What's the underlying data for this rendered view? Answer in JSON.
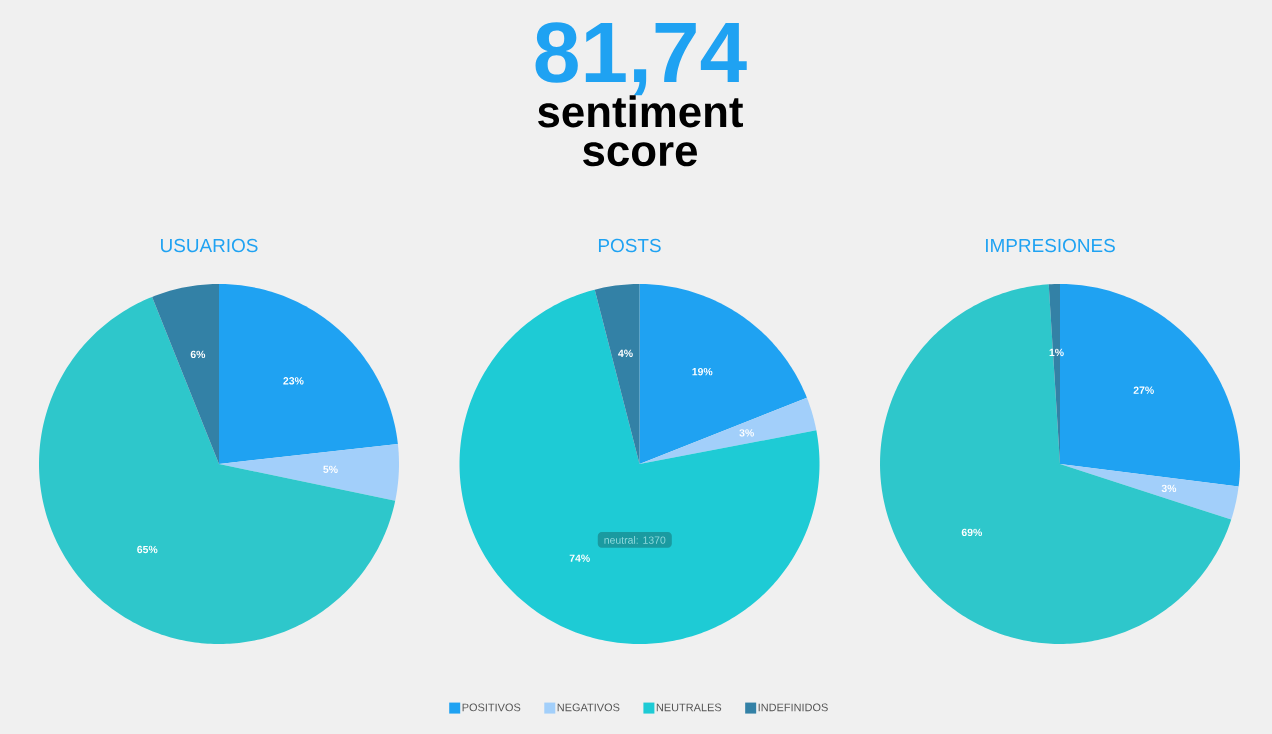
{
  "chart_data": [
    {
      "type": "other",
      "title": "81,74",
      "subtitle": "sentiment score"
    },
    {
      "type": "pie",
      "title": "USUARIOS",
      "categories": [
        null,
        null,
        null,
        null
      ],
      "values": [
        23,
        5,
        65,
        6
      ],
      "colors": [
        "#1fa2f2",
        "#a2cffa",
        "#2ec7cb",
        "#3381a6"
      ],
      "value_labels": [
        "23%",
        "5%",
        "65%",
        "6%"
      ]
    },
    {
      "type": "pie",
      "title": "POSTS",
      "categories": [
        "POSITIVOS",
        "NEGATIVOS",
        "NEUTRALES",
        "INDEFINIDOS"
      ],
      "values": [
        19,
        3,
        74,
        4
      ],
      "colors": [
        "#1fa2f2",
        "#a2cffa",
        "#1ecbd5",
        "#3381a6"
      ],
      "value_labels": [
        "19%",
        "3%",
        "74%",
        "4%"
      ],
      "legend": "bottom",
      "annotations": [
        "neutral: 1370"
      ]
    },
    {
      "type": "pie",
      "title": "IMPRESIONES",
      "categories": [
        null,
        null,
        null,
        null
      ],
      "values": [
        27,
        3,
        69,
        1
      ],
      "colors": [
        "#1fa2f2",
        "#a2cffa",
        "#2ec7cb",
        "#3381a6"
      ],
      "value_labels": [
        "27%",
        "3%",
        "69%",
        "1%"
      ]
    }
  ]
}
